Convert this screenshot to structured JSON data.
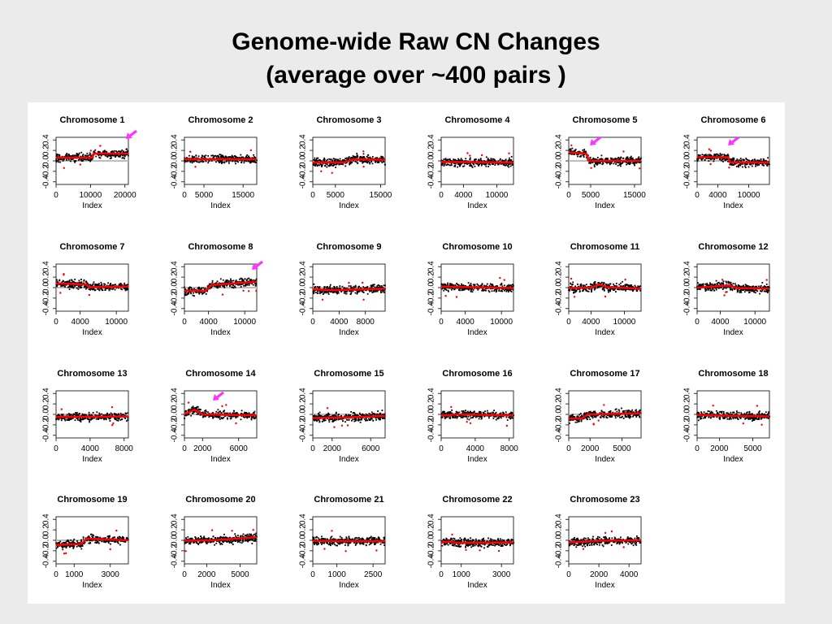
{
  "title": {
    "line1": "Genome-wide Raw CN Changes",
    "line2": "(average over ~400 pairs )"
  },
  "colors": {
    "points": "#000000",
    "smooth": "#ff0000",
    "baseline": "#bdbdbd",
    "arrow": "#ff33ff"
  },
  "chart_data": [
    {
      "type": "scatter",
      "title": "Chromosome 1",
      "xlabel": "Index",
      "xlim": [
        0,
        21000
      ],
      "xticks": [
        0,
        10000,
        20000
      ],
      "ylim": [
        -0.45,
        0.45
      ],
      "yticks": [
        -0.4,
        -0.2,
        0.0,
        0.2,
        0.4
      ],
      "segments": [
        [
          0,
          0.06
        ],
        [
          10500,
          0.06
        ],
        [
          11000,
          0.14
        ],
        [
          21000,
          0.14
        ]
      ],
      "arrow": true
    },
    {
      "type": "scatter",
      "title": "Chromosome 2",
      "xlabel": "Index",
      "xlim": [
        0,
        18500
      ],
      "xticks": [
        0,
        5000,
        15000
      ],
      "ylim": [
        -0.45,
        0.45
      ],
      "yticks": [
        -0.4,
        -0.2,
        0.0,
        0.2,
        0.4
      ],
      "segments": [
        [
          0,
          0.03
        ],
        [
          18500,
          0.03
        ]
      ],
      "arrow": false
    },
    {
      "type": "scatter",
      "title": "Chromosome 3",
      "xlabel": "Index",
      "xlim": [
        0,
        16000
      ],
      "xticks": [
        0,
        5000,
        15000
      ],
      "ylim": [
        -0.45,
        0.45
      ],
      "yticks": [
        -0.4,
        -0.2,
        0.0,
        0.2,
        0.4
      ],
      "segments": [
        [
          0,
          -0.03
        ],
        [
          7000,
          -0.03
        ],
        [
          9000,
          0.03
        ],
        [
          16000,
          0.02
        ]
      ],
      "arrow": false
    },
    {
      "type": "scatter",
      "title": "Chromosome 4",
      "xlabel": "Index",
      "xlim": [
        0,
        13000
      ],
      "xticks": [
        0,
        4000,
        10000
      ],
      "ylim": [
        -0.45,
        0.45
      ],
      "yticks": [
        -0.4,
        -0.2,
        0.0,
        0.2,
        0.4
      ],
      "segments": [
        [
          0,
          -0.02
        ],
        [
          13000,
          -0.03
        ]
      ],
      "arrow": false
    },
    {
      "type": "scatter",
      "title": "Chromosome 5",
      "xlabel": "Index",
      "xlim": [
        0,
        16500
      ],
      "xticks": [
        0,
        5000,
        15000
      ],
      "ylim": [
        -0.45,
        0.45
      ],
      "yticks": [
        -0.4,
        -0.2,
        0.0,
        0.2,
        0.4
      ],
      "segments": [
        [
          0,
          0.16
        ],
        [
          4000,
          0.14
        ],
        [
          4600,
          0.0
        ],
        [
          16500,
          0.0
        ]
      ],
      "arrow": true
    },
    {
      "type": "scatter",
      "title": "Chromosome 6",
      "xlabel": "Index",
      "xlim": [
        0,
        14000
      ],
      "xticks": [
        0,
        4000,
        10000
      ],
      "ylim": [
        -0.45,
        0.45
      ],
      "yticks": [
        -0.4,
        -0.2,
        0.0,
        0.2,
        0.4
      ],
      "segments": [
        [
          0,
          0.07
        ],
        [
          6000,
          0.07
        ],
        [
          6400,
          -0.03
        ],
        [
          14000,
          -0.03
        ]
      ],
      "arrow": true
    },
    {
      "type": "scatter",
      "title": "Chromosome 7",
      "xlabel": "Index",
      "xlim": [
        0,
        12000
      ],
      "xticks": [
        0,
        4000,
        10000
      ],
      "ylim": [
        -0.45,
        0.45
      ],
      "yticks": [
        -0.4,
        -0.2,
        0.0,
        0.2,
        0.4
      ],
      "segments": [
        [
          0,
          0.08
        ],
        [
          5000,
          0.06
        ],
        [
          5500,
          0.01
        ],
        [
          12000,
          0.02
        ]
      ],
      "arrow": false
    },
    {
      "type": "scatter",
      "title": "Chromosome 8",
      "xlabel": "Index",
      "xlim": [
        0,
        12000
      ],
      "xticks": [
        0,
        4000,
        10000
      ],
      "ylim": [
        -0.45,
        0.45
      ],
      "yticks": [
        -0.4,
        -0.2,
        0.0,
        0.2,
        0.4
      ],
      "segments": [
        [
          0,
          -0.06
        ],
        [
          3500,
          -0.06
        ],
        [
          4500,
          0.05
        ],
        [
          8000,
          0.08
        ],
        [
          12000,
          0.11
        ]
      ],
      "arrow": true
    },
    {
      "type": "scatter",
      "title": "Chromosome 9",
      "xlabel": "Index",
      "xlim": [
        0,
        11000
      ],
      "xticks": [
        0,
        4000,
        8000
      ],
      "ylim": [
        -0.45,
        0.45
      ],
      "yticks": [
        -0.4,
        -0.2,
        0.0,
        0.2,
        0.4
      ],
      "segments": [
        [
          0,
          -0.03
        ],
        [
          3000,
          -0.05
        ],
        [
          11000,
          -0.02
        ]
      ],
      "arrow": false
    },
    {
      "type": "scatter",
      "title": "Chromosome 10",
      "xlabel": "Index",
      "xlim": [
        0,
        12000
      ],
      "xticks": [
        0,
        4000,
        10000
      ],
      "ylim": [
        -0.45,
        0.45
      ],
      "yticks": [
        -0.4,
        -0.2,
        0.0,
        0.2,
        0.4
      ],
      "segments": [
        [
          0,
          0.02
        ],
        [
          12000,
          -0.01
        ]
      ],
      "arrow": false
    },
    {
      "type": "scatter",
      "title": "Chromosome 11",
      "xlabel": "Index",
      "xlim": [
        0,
        13000
      ],
      "xticks": [
        0,
        4000,
        10000
      ],
      "ylim": [
        -0.45,
        0.45
      ],
      "yticks": [
        -0.4,
        -0.2,
        0.0,
        0.2,
        0.4
      ],
      "segments": [
        [
          0,
          -0.01
        ],
        [
          4000,
          0.0
        ],
        [
          5500,
          0.06
        ],
        [
          7000,
          0.01
        ],
        [
          13000,
          -0.02
        ]
      ],
      "arrow": false
    },
    {
      "type": "scatter",
      "title": "Chromosome 12",
      "xlabel": "Index",
      "xlim": [
        0,
        12500
      ],
      "xticks": [
        0,
        4000,
        10000
      ],
      "ylim": [
        -0.45,
        0.45
      ],
      "yticks": [
        -0.4,
        -0.2,
        0.0,
        0.2,
        0.4
      ],
      "segments": [
        [
          0,
          0.0
        ],
        [
          3000,
          0.02
        ],
        [
          5500,
          0.04
        ],
        [
          7000,
          -0.01
        ],
        [
          12500,
          -0.02
        ]
      ],
      "arrow": false
    },
    {
      "type": "scatter",
      "title": "Chromosome 13",
      "xlabel": "Index",
      "xlim": [
        0,
        8500
      ],
      "xticks": [
        0,
        4000,
        8000
      ],
      "ylim": [
        -0.45,
        0.45
      ],
      "yticks": [
        -0.4,
        -0.2,
        0.0,
        0.2,
        0.4
      ],
      "segments": [
        [
          0,
          -0.05
        ],
        [
          8500,
          -0.04
        ]
      ],
      "arrow": false
    },
    {
      "type": "scatter",
      "title": "Chromosome 14",
      "xlabel": "Index",
      "xlim": [
        0,
        8000
      ],
      "xticks": [
        0,
        2000,
        6000
      ],
      "ylim": [
        -0.45,
        0.45
      ],
      "yticks": [
        -0.4,
        -0.2,
        0.0,
        0.2,
        0.4
      ],
      "segments": [
        [
          0,
          0.0
        ],
        [
          1100,
          0.09
        ],
        [
          2000,
          0.0
        ],
        [
          8000,
          -0.02
        ]
      ],
      "arrow": true
    },
    {
      "type": "scatter",
      "title": "Chromosome 15",
      "xlabel": "Index",
      "xlim": [
        0,
        7500
      ],
      "xticks": [
        0,
        2000,
        6000
      ],
      "ylim": [
        -0.45,
        0.45
      ],
      "yticks": [
        -0.4,
        -0.2,
        0.0,
        0.2,
        0.4
      ],
      "segments": [
        [
          0,
          -0.07
        ],
        [
          3000,
          -0.06
        ],
        [
          7500,
          -0.03
        ]
      ],
      "arrow": false
    },
    {
      "type": "scatter",
      "title": "Chromosome 16",
      "xlabel": "Index",
      "xlim": [
        0,
        8500
      ],
      "xticks": [
        0,
        4000,
        8000
      ],
      "ylim": [
        -0.45,
        0.45
      ],
      "yticks": [
        -0.4,
        -0.2,
        0.0,
        0.2,
        0.4
      ],
      "segments": [
        [
          0,
          -0.02
        ],
        [
          800,
          -0.02
        ],
        [
          1500,
          0.0
        ],
        [
          8500,
          -0.02
        ]
      ],
      "arrow": false
    },
    {
      "type": "scatter",
      "title": "Chromosome 17",
      "xlabel": "Index",
      "xlim": [
        0,
        6800
      ],
      "xticks": [
        0,
        2000,
        5000
      ],
      "ylim": [
        -0.45,
        0.45
      ],
      "yticks": [
        -0.4,
        -0.2,
        0.0,
        0.2,
        0.4
      ],
      "segments": [
        [
          0,
          -0.08
        ],
        [
          1200,
          -0.08
        ],
        [
          1800,
          0.0
        ],
        [
          6800,
          0.02
        ]
      ],
      "arrow": false
    },
    {
      "type": "scatter",
      "title": "Chromosome 18",
      "xlabel": "Index",
      "xlim": [
        0,
        6500
      ],
      "xticks": [
        0,
        2000,
        5000
      ],
      "ylim": [
        -0.45,
        0.45
      ],
      "yticks": [
        -0.4,
        -0.2,
        0.0,
        0.2,
        0.4
      ],
      "segments": [
        [
          0,
          -0.01
        ],
        [
          1500,
          -0.02
        ],
        [
          6500,
          -0.04
        ]
      ],
      "arrow": false
    },
    {
      "type": "scatter",
      "title": "Chromosome 19",
      "xlabel": "Index",
      "xlim": [
        0,
        4000
      ],
      "xticks": [
        0,
        1000,
        3000
      ],
      "ylim": [
        -0.45,
        0.45
      ],
      "yticks": [
        -0.4,
        -0.2,
        0.0,
        0.2,
        0.4
      ],
      "segments": [
        [
          0,
          -0.09
        ],
        [
          1400,
          -0.07
        ],
        [
          1700,
          0.03
        ],
        [
          2500,
          0.02
        ],
        [
          4000,
          0.0
        ]
      ],
      "arrow": false
    },
    {
      "type": "scatter",
      "title": "Chromosome 20",
      "xlabel": "Index",
      "xlim": [
        0,
        6500
      ],
      "xticks": [
        0,
        2000,
        5000
      ],
      "ylim": [
        -0.45,
        0.45
      ],
      "yticks": [
        -0.4,
        -0.2,
        0.0,
        0.2,
        0.4
      ],
      "segments": [
        [
          0,
          -0.01
        ],
        [
          2500,
          0.0
        ],
        [
          6500,
          0.06
        ]
      ],
      "arrow": false
    },
    {
      "type": "scatter",
      "title": "Chromosome 21",
      "xlabel": "Index",
      "xlim": [
        0,
        3000
      ],
      "xticks": [
        0,
        1000,
        2500
      ],
      "ylim": [
        -0.45,
        0.45
      ],
      "yticks": [
        -0.4,
        -0.2,
        0.0,
        0.2,
        0.4
      ],
      "segments": [
        [
          0,
          -0.01
        ],
        [
          3000,
          -0.02
        ]
      ],
      "arrow": false
    },
    {
      "type": "scatter",
      "title": "Chromosome 22",
      "xlabel": "Index",
      "xlim": [
        0,
        3600
      ],
      "xticks": [
        0,
        1000,
        3000
      ],
      "ylim": [
        -0.45,
        0.45
      ],
      "yticks": [
        -0.4,
        -0.2,
        0.0,
        0.2,
        0.4
      ],
      "segments": [
        [
          0,
          -0.04
        ],
        [
          400,
          -0.02
        ],
        [
          800,
          -0.05
        ],
        [
          3600,
          -0.04
        ]
      ],
      "arrow": false
    },
    {
      "type": "scatter",
      "title": "Chromosome 23",
      "xlabel": "Index",
      "xlim": [
        0,
        4800
      ],
      "xticks": [
        0,
        2000,
        4000
      ],
      "ylim": [
        -0.45,
        0.45
      ],
      "yticks": [
        -0.4,
        -0.2,
        0.0,
        0.2,
        0.4
      ],
      "segments": [
        [
          0,
          -0.04
        ],
        [
          2000,
          -0.01
        ],
        [
          4800,
          0.0
        ]
      ],
      "arrow": false
    }
  ]
}
